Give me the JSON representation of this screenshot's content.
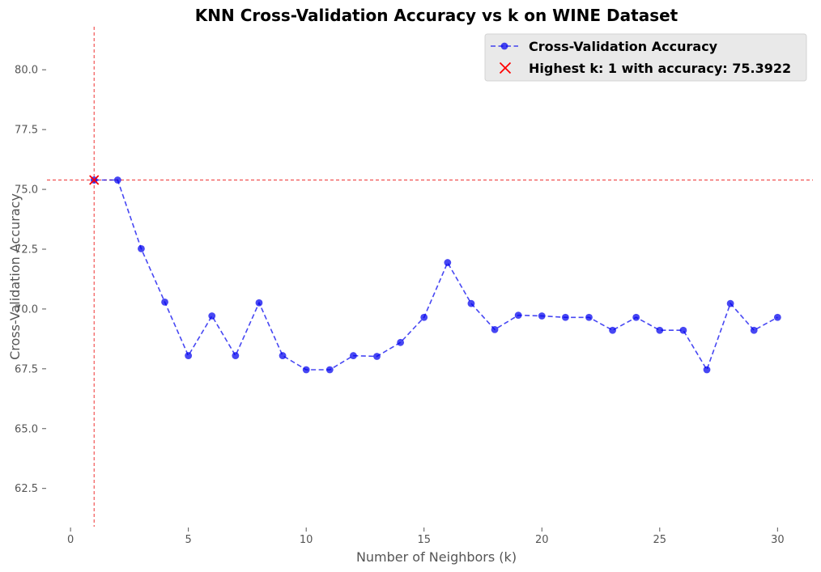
{
  "chart_data": {
    "type": "line",
    "title": "KNN Cross-Validation Accuracy vs k on WINE Dataset",
    "xlabel": "Number of Neighbors (k)",
    "ylabel": "Cross-Validation Accuracy",
    "xlim": [
      -1,
      31.5
    ],
    "ylim": [
      60.9,
      81.8
    ],
    "xticks": [
      0,
      5,
      10,
      15,
      20,
      25,
      30
    ],
    "xtick_labels": [
      "0",
      "5",
      "10",
      "15",
      "20",
      "25",
      "30"
    ],
    "yticks": [
      62.5,
      65.0,
      67.5,
      70.0,
      72.5,
      75.0,
      77.5,
      80.0
    ],
    "ytick_labels": [
      "62.5",
      "65.0",
      "67.5",
      "70.0",
      "72.5",
      "75.0",
      "77.5",
      "80.0"
    ],
    "grid": false,
    "legend_position": "top-right",
    "series": [
      {
        "name": "Cross-Validation Accuracy",
        "color": "#0000ee",
        "style": "dashed line with circle markers",
        "x": [
          1,
          2,
          3,
          4,
          5,
          6,
          7,
          8,
          9,
          10,
          11,
          12,
          13,
          14,
          15,
          16,
          17,
          18,
          19,
          20,
          21,
          22,
          23,
          24,
          25,
          26,
          27,
          28,
          29,
          30
        ],
        "y": [
          75.39,
          75.39,
          72.52,
          70.29,
          68.05,
          69.71,
          68.05,
          70.26,
          68.05,
          67.46,
          67.46,
          68.05,
          68.02,
          68.6,
          69.65,
          71.94,
          70.23,
          69.14,
          69.74,
          69.71,
          69.65,
          69.65,
          69.11,
          69.65,
          69.11,
          69.11,
          67.46,
          70.23,
          69.11,
          69.65
        ]
      }
    ],
    "highlight": {
      "name": "Highest k: 1 with accuracy: 75.3922",
      "color": "#ff0000",
      "marker": "x",
      "x": 1,
      "y": 75.3922
    },
    "reference_lines": {
      "vertical_x": 1,
      "horizontal_y": 75.3922,
      "color": "#ee3333",
      "style": "dashed"
    }
  }
}
